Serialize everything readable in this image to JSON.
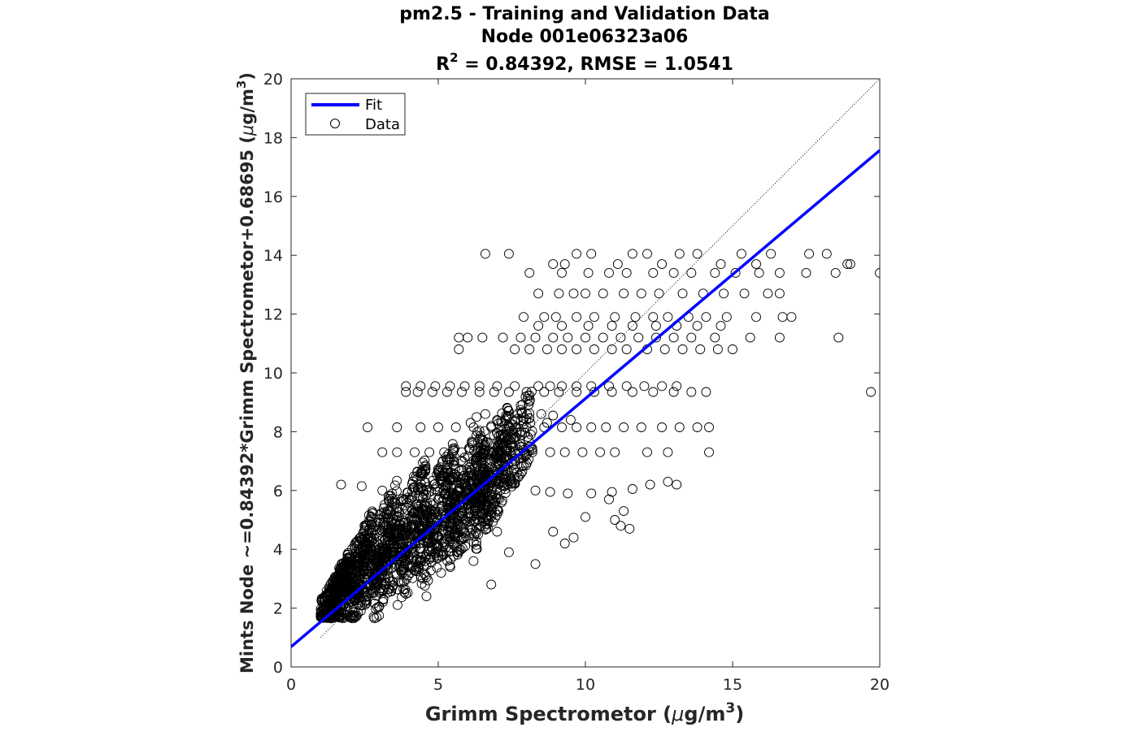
{
  "chart_data": {
    "type": "scatter",
    "title_lines": [
      "pm2.5 - Training and Validation Data",
      "Node 001e06323a06"
    ],
    "stats_line": {
      "r_prefix": "R",
      "r_exp": "2",
      "rest": " = 0.84392, RMSE = 1.0541"
    },
    "xlabel": {
      "main": "Grimm Spectrometor (",
      "mu": "μ",
      "unit": "g/m",
      "exp": "3",
      "close": ")"
    },
    "ylabel": {
      "main": "Mints Node ~=0.84392*Grimm Spectrometor+0.68695 (",
      "mu": "μ",
      "unit": "g/m",
      "exp": "3",
      "close": ")"
    },
    "xlim": [
      0,
      20
    ],
    "ylim": [
      0,
      20
    ],
    "xticks": [
      0,
      5,
      10,
      15,
      20
    ],
    "yticks": [
      0,
      2,
      4,
      6,
      8,
      10,
      12,
      14,
      16,
      18,
      20
    ],
    "grid": false,
    "legend": {
      "placement": "top-left",
      "entries": [
        "Fit",
        "Data"
      ]
    },
    "fit": {
      "slope": 0.84392,
      "intercept": 0.68695,
      "color": "#0000ff"
    },
    "identity_line": {
      "from": [
        1,
        1
      ],
      "to": [
        20,
        20
      ],
      "style": "dotted"
    },
    "marker_color": "#000000",
    "series": [
      {
        "name": "Data",
        "points": [
          [
            6.6,
            14.05
          ],
          [
            7.4,
            14.05
          ],
          [
            8.9,
            13.7
          ],
          [
            9.3,
            13.7
          ],
          [
            9.7,
            14.05
          ],
          [
            10.2,
            14.05
          ],
          [
            11.1,
            13.7
          ],
          [
            11.6,
            14.05
          ],
          [
            12.1,
            14.05
          ],
          [
            12.6,
            13.7
          ],
          [
            13.2,
            14.05
          ],
          [
            13.8,
            14.05
          ],
          [
            14.6,
            13.7
          ],
          [
            15.3,
            14.05
          ],
          [
            15.8,
            13.7
          ],
          [
            16.3,
            14.05
          ],
          [
            17.6,
            14.05
          ],
          [
            18.2,
            14.05
          ],
          [
            18.9,
            13.7
          ],
          [
            19.0,
            13.7
          ],
          [
            8.1,
            13.4
          ],
          [
            9.2,
            13.4
          ],
          [
            10.1,
            13.4
          ],
          [
            10.8,
            13.4
          ],
          [
            11.4,
            13.4
          ],
          [
            12.3,
            13.4
          ],
          [
            13.0,
            13.4
          ],
          [
            13.6,
            13.4
          ],
          [
            14.4,
            13.4
          ],
          [
            15.1,
            13.4
          ],
          [
            15.9,
            13.4
          ],
          [
            16.6,
            13.4
          ],
          [
            17.5,
            13.4
          ],
          [
            18.5,
            13.4
          ],
          [
            20.0,
            13.4
          ],
          [
            8.4,
            12.7
          ],
          [
            9.1,
            12.7
          ],
          [
            9.6,
            12.7
          ],
          [
            10.0,
            12.7
          ],
          [
            10.6,
            12.7
          ],
          [
            11.3,
            12.7
          ],
          [
            11.9,
            12.7
          ],
          [
            12.5,
            12.7
          ],
          [
            13.3,
            12.7
          ],
          [
            14.0,
            12.7
          ],
          [
            14.7,
            12.7
          ],
          [
            15.4,
            12.7
          ],
          [
            16.2,
            12.7
          ],
          [
            16.6,
            12.7
          ],
          [
            7.9,
            11.9
          ],
          [
            8.6,
            11.9
          ],
          [
            9.0,
            11.9
          ],
          [
            9.7,
            11.9
          ],
          [
            10.3,
            11.9
          ],
          [
            11.0,
            11.9
          ],
          [
            11.7,
            11.9
          ],
          [
            12.3,
            11.9
          ],
          [
            12.8,
            11.9
          ],
          [
            13.5,
            11.9
          ],
          [
            14.1,
            11.9
          ],
          [
            14.8,
            11.9
          ],
          [
            15.8,
            11.9
          ],
          [
            16.7,
            11.9
          ],
          [
            17.0,
            11.9
          ],
          [
            8.4,
            11.6
          ],
          [
            9.2,
            11.6
          ],
          [
            10.1,
            11.6
          ],
          [
            10.9,
            11.6
          ],
          [
            11.6,
            11.6
          ],
          [
            12.4,
            11.6
          ],
          [
            13.1,
            11.6
          ],
          [
            13.8,
            11.6
          ],
          [
            14.6,
            11.6
          ],
          [
            5.7,
            11.2
          ],
          [
            6.0,
            11.2
          ],
          [
            6.5,
            11.2
          ],
          [
            7.2,
            11.2
          ],
          [
            7.8,
            11.2
          ],
          [
            8.3,
            11.2
          ],
          [
            8.9,
            11.2
          ],
          [
            9.4,
            11.2
          ],
          [
            10.0,
            11.2
          ],
          [
            10.6,
            11.2
          ],
          [
            11.2,
            11.2
          ],
          [
            11.8,
            11.2
          ],
          [
            12.4,
            11.2
          ],
          [
            13.0,
            11.2
          ],
          [
            13.6,
            11.2
          ],
          [
            14.4,
            11.2
          ],
          [
            15.6,
            11.2
          ],
          [
            16.6,
            11.2
          ],
          [
            18.6,
            11.2
          ],
          [
            5.7,
            10.8
          ],
          [
            7.6,
            10.8
          ],
          [
            8.1,
            10.8
          ],
          [
            8.7,
            10.8
          ],
          [
            9.2,
            10.8
          ],
          [
            9.7,
            10.8
          ],
          [
            10.3,
            10.8
          ],
          [
            10.9,
            10.8
          ],
          [
            11.4,
            10.8
          ],
          [
            12.1,
            10.8
          ],
          [
            12.7,
            10.8
          ],
          [
            13.3,
            10.8
          ],
          [
            13.9,
            10.8
          ],
          [
            14.5,
            10.8
          ],
          [
            15.0,
            10.8
          ],
          [
            3.9,
            9.55
          ],
          [
            4.4,
            9.55
          ],
          [
            4.9,
            9.55
          ],
          [
            5.4,
            9.55
          ],
          [
            5.9,
            9.55
          ],
          [
            6.4,
            9.55
          ],
          [
            7.0,
            9.55
          ],
          [
            7.6,
            9.55
          ],
          [
            8.4,
            9.55
          ],
          [
            8.8,
            9.55
          ],
          [
            9.2,
            9.55
          ],
          [
            9.7,
            9.55
          ],
          [
            10.2,
            9.55
          ],
          [
            10.8,
            9.55
          ],
          [
            11.4,
            9.55
          ],
          [
            12.0,
            9.55
          ],
          [
            12.6,
            9.55
          ],
          [
            13.1,
            9.55
          ],
          [
            3.9,
            9.35
          ],
          [
            4.3,
            9.35
          ],
          [
            4.8,
            9.35
          ],
          [
            5.3,
            9.35
          ],
          [
            5.8,
            9.35
          ],
          [
            6.4,
            9.35
          ],
          [
            6.9,
            9.35
          ],
          [
            7.4,
            9.35
          ],
          [
            8.0,
            9.35
          ],
          [
            8.6,
            9.35
          ],
          [
            9.1,
            9.35
          ],
          [
            9.7,
            9.35
          ],
          [
            10.3,
            9.35
          ],
          [
            10.9,
            9.35
          ],
          [
            11.6,
            9.35
          ],
          [
            12.3,
            9.35
          ],
          [
            13.0,
            9.35
          ],
          [
            13.6,
            9.35
          ],
          [
            14.1,
            9.35
          ],
          [
            19.7,
            9.35
          ],
          [
            2.6,
            8.15
          ],
          [
            3.6,
            8.15
          ],
          [
            4.4,
            8.15
          ],
          [
            5.0,
            8.15
          ],
          [
            5.6,
            8.15
          ],
          [
            6.2,
            8.15
          ],
          [
            6.8,
            8.15
          ],
          [
            7.4,
            8.15
          ],
          [
            8.0,
            8.15
          ],
          [
            8.6,
            8.15
          ],
          [
            9.2,
            8.15
          ],
          [
            9.7,
            8.15
          ],
          [
            10.2,
            8.15
          ],
          [
            10.7,
            8.15
          ],
          [
            11.3,
            8.15
          ],
          [
            11.9,
            8.15
          ],
          [
            12.6,
            8.15
          ],
          [
            13.2,
            8.15
          ],
          [
            13.8,
            8.15
          ],
          [
            14.2,
            8.15
          ],
          [
            3.1,
            7.3
          ],
          [
            3.6,
            7.3
          ],
          [
            4.2,
            7.3
          ],
          [
            4.7,
            7.3
          ],
          [
            5.2,
            7.3
          ],
          [
            5.8,
            7.3
          ],
          [
            6.4,
            7.3
          ],
          [
            7.0,
            7.3
          ],
          [
            7.6,
            7.3
          ],
          [
            8.2,
            7.3
          ],
          [
            8.8,
            7.3
          ],
          [
            9.3,
            7.3
          ],
          [
            9.9,
            7.3
          ],
          [
            10.5,
            7.3
          ],
          [
            11.0,
            7.3
          ],
          [
            12.1,
            7.3
          ],
          [
            12.8,
            7.3
          ],
          [
            14.2,
            7.3
          ],
          [
            1.7,
            6.2
          ],
          [
            2.4,
            6.15
          ],
          [
            3.1,
            6.0
          ],
          [
            8.3,
            6.0
          ],
          [
            8.8,
            5.95
          ],
          [
            9.4,
            5.9
          ],
          [
            10.2,
            5.9
          ],
          [
            10.9,
            5.95
          ],
          [
            11.6,
            6.05
          ],
          [
            12.2,
            6.2
          ],
          [
            12.8,
            6.3
          ],
          [
            13.1,
            6.2
          ],
          [
            10.8,
            5.7
          ],
          [
            11.3,
            5.3
          ],
          [
            10.0,
            5.1
          ],
          [
            11.0,
            5.0
          ],
          [
            11.2,
            4.8
          ],
          [
            8.9,
            4.6
          ],
          [
            9.6,
            4.4
          ],
          [
            11.5,
            4.7
          ],
          [
            9.3,
            4.2
          ],
          [
            7.4,
            3.9
          ],
          [
            8.3,
            3.5
          ],
          [
            6.8,
            2.8
          ],
          [
            5.1,
            3.2
          ],
          [
            4.6,
            2.4
          ],
          [
            7.0,
            4.6
          ],
          [
            6.2,
            3.6
          ],
          [
            6.3,
            8.5
          ],
          [
            6.6,
            8.6
          ],
          [
            7.0,
            8.4
          ],
          [
            7.3,
            8.55
          ],
          [
            7.7,
            8.6
          ],
          [
            8.1,
            8.45
          ],
          [
            8.5,
            8.6
          ],
          [
            8.9,
            8.55
          ],
          [
            9.5,
            8.4
          ],
          [
            6.1,
            8.3
          ],
          [
            6.8,
            8.2
          ],
          [
            7.9,
            8.25
          ],
          [
            8.7,
            8.3
          ]
        ],
        "dense_band": [
          {
            "x": [
              1.0,
              2.0
            ],
            "y": [
              1.65,
              3.4
            ]
          },
          {
            "x": [
              1.4,
              2.8
            ],
            "y": [
              1.75,
              4.5
            ]
          },
          {
            "x": [
              2.0,
              3.6
            ],
            "y": [
              2.1,
              5.3
            ]
          },
          {
            "x": [
              2.8,
              4.6
            ],
            "y": [
              2.6,
              6.1
            ]
          },
          {
            "x": [
              3.6,
              5.6
            ],
            "y": [
              3.1,
              6.6
            ]
          },
          {
            "x": [
              4.4,
              6.6
            ],
            "y": [
              3.7,
              7.2
            ]
          },
          {
            "x": [
              5.3,
              7.4
            ],
            "y": [
              4.3,
              7.8
            ]
          },
          {
            "x": [
              6.2,
              8.2
            ],
            "y": [
              5.0,
              8.4
            ]
          }
        ]
      }
    ]
  }
}
